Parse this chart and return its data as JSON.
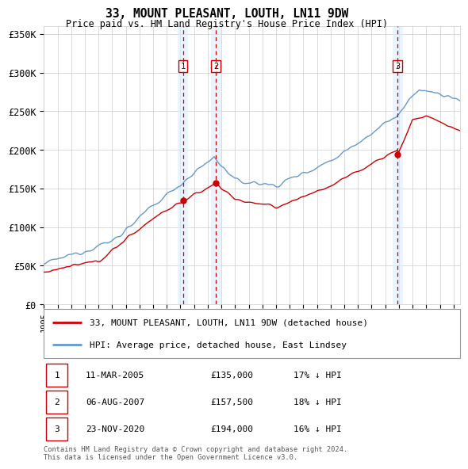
{
  "title": "33, MOUNT PLEASANT, LOUTH, LN11 9DW",
  "subtitle": "Price paid vs. HM Land Registry's House Price Index (HPI)",
  "xlim_start": 1995.0,
  "xlim_end": 2025.5,
  "ylim": [
    0,
    360000
  ],
  "yticks": [
    0,
    50000,
    100000,
    150000,
    200000,
    250000,
    300000,
    350000
  ],
  "ytick_labels": [
    "£0",
    "£50K",
    "£100K",
    "£150K",
    "£200K",
    "£250K",
    "£300K",
    "£350K"
  ],
  "sale_dates": [
    2005.19,
    2007.59,
    2020.9
  ],
  "sale_prices": [
    135000,
    157500,
    194000
  ],
  "sale_labels": [
    "1",
    "2",
    "3"
  ],
  "sale_info": [
    {
      "label": "1",
      "date": "11-MAR-2005",
      "price": "£135,000",
      "hpi": "17% ↓ HPI"
    },
    {
      "label": "2",
      "date": "06-AUG-2007",
      "price": "£157,500",
      "hpi": "18% ↓ HPI"
    },
    {
      "label": "3",
      "date": "23-NOV-2020",
      "price": "£194,000",
      "hpi": "16% ↓ HPI"
    }
  ],
  "legend_line1": "33, MOUNT PLEASANT, LOUTH, LN11 9DW (detached house)",
  "legend_line2": "HPI: Average price, detached house, East Lindsey",
  "footer1": "Contains HM Land Registry data © Crown copyright and database right 2024.",
  "footer2": "This data is licensed under the Open Government Licence v3.0.",
  "hpi_color": "#6699cc",
  "price_color": "#cc0000",
  "shade_color": "#ddeeff",
  "background_color": "#ffffff",
  "grid_color": "#cccccc",
  "shade_alpha": 0.6
}
